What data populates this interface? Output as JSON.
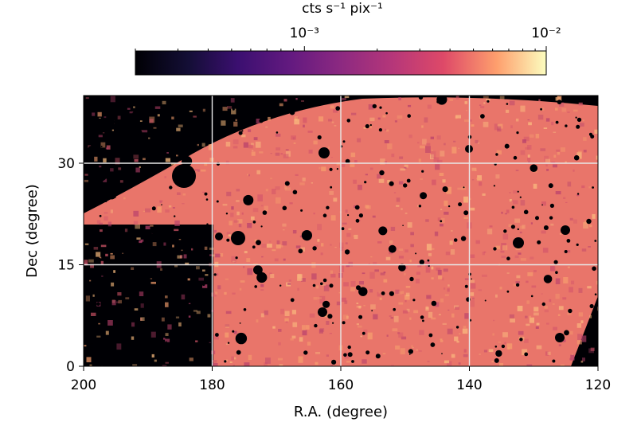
{
  "chart_data": {
    "type": "heatmap",
    "title": "",
    "xlabel": "R.A. (degree)",
    "ylabel": "Dec (degree)",
    "xlim": [
      200,
      120
    ],
    "ylim": [
      0,
      40
    ],
    "x_ticks": [
      200,
      180,
      160,
      140,
      120
    ],
    "y_ticks": [
      0,
      15,
      30
    ],
    "x_tick_labels": [
      "200",
      "180",
      "160",
      "140",
      "120"
    ],
    "y_tick_labels": [
      "0",
      "15",
      "30"
    ],
    "grid": true,
    "colormap": "magma",
    "colorbar": {
      "label": "cts s⁻¹ pix⁻¹",
      "scale": "log",
      "range": [
        0.0002,
        0.01
      ],
      "orientation": "horizontal",
      "placement": "top",
      "tick_values": [
        0.001,
        0.01
      ],
      "tick_labels": [
        "10⁻³",
        "10⁻²"
      ]
    },
    "colors": {
      "background": "#000004",
      "fill_mid": "#e9756a",
      "fill_dark": "#b8406c",
      "grid": "#e8e8e8"
    }
  }
}
